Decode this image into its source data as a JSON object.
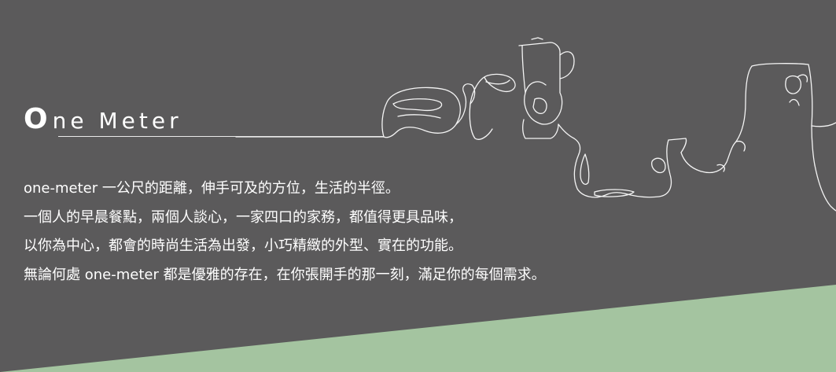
{
  "brand": {
    "logo_first": "O",
    "logo_rest": "ne Meter"
  },
  "description": {
    "lines": [
      "one-meter 一公尺的距離，伸手可及的方位，生活的半徑。",
      "一個人的早晨餐點，兩個人談心，一家四口的家務，都值得更具品味，",
      "以你為中心，都會的時尚生活為出發，小巧精緻的外型、實在的功能。",
      "無論何處 one-meter 都是優雅的存在，在你張開手的那一刻，滿足你的每個需求。"
    ]
  },
  "colors": {
    "background": "#5b5a5b",
    "accent_band": "#a4c4a0",
    "text": "#ffffff",
    "line_art": "#f4f4f4"
  }
}
